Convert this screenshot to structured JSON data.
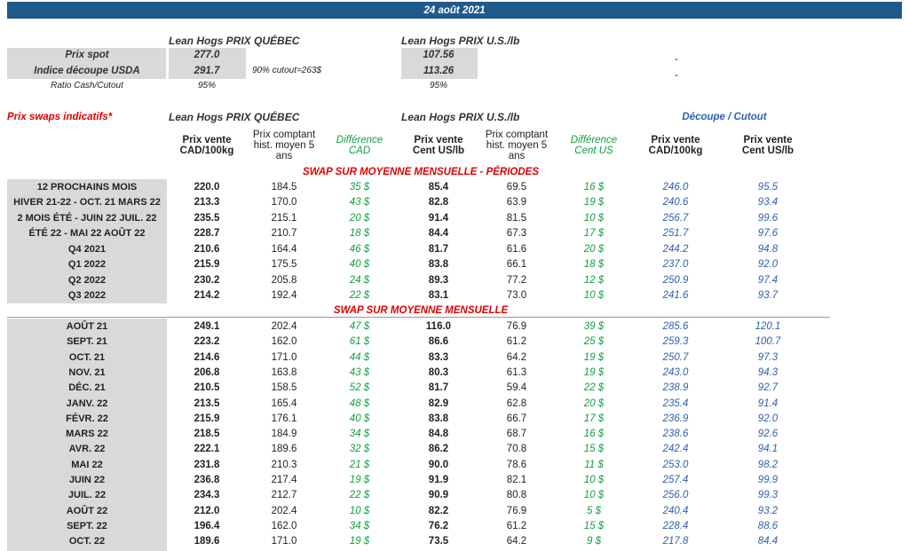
{
  "header": {
    "date": "24 août 2021"
  },
  "spot": {
    "quebec_title": "Lean Hogs PRIX QUÉBEC",
    "us_title": "Lean Hogs PRIX U.S./lb",
    "rows": [
      [
        "Prix spot",
        "277.0",
        "",
        "107.56",
        "-"
      ],
      [
        "Indice découpe USDA",
        "291.7",
        "90% cutout=263$",
        "113.26",
        "-"
      ],
      [
        "Ratio Cash/Cutout",
        "95%",
        "",
        "95%",
        ""
      ]
    ]
  },
  "swaps": {
    "title": "Prix swaps indicatifs*",
    "quebec_title": "Lean Hogs PRIX QUÉBEC",
    "us_title": "Lean Hogs PRIX U.S./lb",
    "cutout_title": "Découpe / Cutout",
    "columns": [
      "Prix vente\nCAD/100kg",
      "Prix comptant\nhist. moyen 5\nans",
      "Différence\nCAD",
      "Prix vente\nCent US/lb",
      "Prix comptant\nhist. moyen 5\nans",
      "Différence\nCent US",
      "Prix vente\nCAD/100kg",
      "Prix vente\nCent US/lb"
    ]
  },
  "periods": {
    "title": "SWAP SUR MOYENNE MENSUELLE - PÉRIODES",
    "rows": [
      [
        "12 PROCHAINS MOIS",
        "220.0",
        "184.5",
        "35 $",
        "85.4",
        "69.5",
        "16 $",
        "246.0",
        "95.5"
      ],
      [
        "HIVER 21-22 - OCT. 21 MARS 22",
        "213.3",
        "170.0",
        "43 $",
        "82.8",
        "63.9",
        "19 $",
        "240.6",
        "93.4"
      ],
      [
        "2 MOIS ÉTÉ - JUIN 22 JUIL. 22",
        "235.5",
        "215.1",
        "20 $",
        "91.4",
        "81.5",
        "10 $",
        "256.7",
        "99.6"
      ],
      [
        "ÉTÉ 22 - MAI 22 AOÛT 22",
        "228.7",
        "210.7",
        "18 $",
        "84.4",
        "67.3",
        "17 $",
        "251.7",
        "97.6"
      ],
      [
        "Q4 2021",
        "210.6",
        "164.4",
        "46 $",
        "81.7",
        "61.6",
        "20 $",
        "244.2",
        "94.8"
      ],
      [
        "Q1 2022",
        "215.9",
        "175.5",
        "40 $",
        "83.8",
        "66.1",
        "18 $",
        "237.0",
        "92.0"
      ],
      [
        "Q2 2022",
        "230.2",
        "205.8",
        "24 $",
        "89.3",
        "77.2",
        "12 $",
        "250.9",
        "97.4"
      ],
      [
        "Q3 2022",
        "214.2",
        "192.4",
        "22 $",
        "83.1",
        "73.0",
        "10 $",
        "241.6",
        "93.7"
      ]
    ]
  },
  "monthly": {
    "title": "SWAP SUR MOYENNE MENSUELLE",
    "rows": [
      [
        "AOÛT 21",
        "249.1",
        "202.4",
        "47 $",
        "116.0",
        "76.9",
        "39 $",
        "285.6",
        "120.1"
      ],
      [
        "SEPT. 21",
        "223.2",
        "162.0",
        "61 $",
        "86.6",
        "61.2",
        "25 $",
        "259.3",
        "100.7"
      ],
      [
        "OCT. 21",
        "214.6",
        "171.0",
        "44 $",
        "83.3",
        "64.2",
        "19 $",
        "250.7",
        "97.3"
      ],
      [
        "NOV. 21",
        "206.8",
        "163.8",
        "43 $",
        "80.3",
        "61.3",
        "19 $",
        "243.0",
        "94.3"
      ],
      [
        "DÉC. 21",
        "210.5",
        "158.5",
        "52 $",
        "81.7",
        "59.4",
        "22 $",
        "238.9",
        "92.7"
      ],
      [
        "JANV. 22",
        "213.5",
        "165.4",
        "48 $",
        "82.9",
        "62.8",
        "20 $",
        "235.4",
        "91.4"
      ],
      [
        "FÉVR. 22",
        "215.9",
        "176.1",
        "40 $",
        "83.8",
        "66.7",
        "17 $",
        "236.9",
        "92.0"
      ],
      [
        "MARS 22",
        "218.5",
        "184.9",
        "34 $",
        "84.8",
        "68.7",
        "16 $",
        "238.6",
        "92.6"
      ],
      [
        "AVR. 22",
        "222.1",
        "189.6",
        "32 $",
        "86.2",
        "70.8",
        "15 $",
        "242.4",
        "94.1"
      ],
      [
        "MAI 22",
        "231.8",
        "210.3",
        "21 $",
        "90.0",
        "78.6",
        "11 $",
        "253.0",
        "98.2"
      ],
      [
        "JUIN 22",
        "236.8",
        "217.4",
        "19 $",
        "91.9",
        "82.1",
        "10 $",
        "257.4",
        "99.9"
      ],
      [
        "JUIL. 22",
        "234.3",
        "212.7",
        "22 $",
        "90.9",
        "80.8",
        "10 $",
        "256.0",
        "99.3"
      ],
      [
        "AOÛT 22",
        "212.0",
        "202.4",
        "10 $",
        "82.2",
        "76.9",
        "5 $",
        "240.4",
        "93.2"
      ],
      [
        "SEPT. 22",
        "196.4",
        "162.0",
        "34 $",
        "76.2",
        "61.2",
        "15 $",
        "228.4",
        "88.6"
      ],
      [
        "OCT. 22",
        "189.6",
        "171.0",
        "19 $",
        "73.5",
        "64.2",
        "9 $",
        "217.8",
        "84.4"
      ]
    ]
  }
}
